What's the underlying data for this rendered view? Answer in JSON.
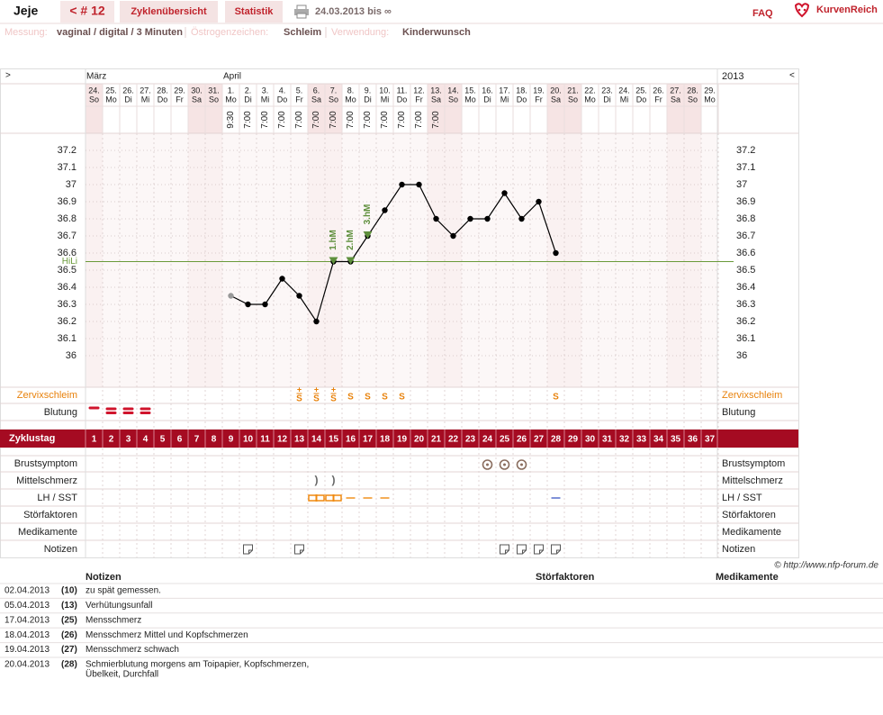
{
  "header": {
    "user": "Jeje",
    "cycle": "< # 12",
    "tabs": [
      "Zyklenübersicht",
      "Statistik"
    ],
    "range": "24.03.2013 bis ∞",
    "faq": "FAQ",
    "brand": "KurvenReich"
  },
  "info": [
    {
      "label": "Messung:",
      "value": "vaginal / digital / 3 Minuten"
    },
    {
      "label": "Östrogenzeichen:",
      "value": "Schleim"
    },
    {
      "label": "Verwendung:",
      "value": "Kinderwunsch"
    }
  ],
  "chart_data": {
    "type": "line",
    "nav_left": ">",
    "nav_right": "<",
    "year": "2013",
    "row_title": "Zyklustag",
    "categories": [
      1,
      2,
      3,
      4,
      5,
      6,
      7,
      8,
      9,
      10,
      11,
      12,
      13,
      14,
      15,
      16,
      17,
      18,
      19,
      20,
      21,
      22,
      23,
      24,
      25,
      26,
      27,
      28,
      29,
      30,
      31,
      32,
      33,
      34,
      35,
      36,
      37
    ],
    "days": [
      {
        "date": "24.",
        "weekday": "So",
        "month": "März"
      },
      {
        "date": "25.",
        "weekday": "Mo"
      },
      {
        "date": "26.",
        "weekday": "Di"
      },
      {
        "date": "27.",
        "weekday": "Mi"
      },
      {
        "date": "28.",
        "weekday": "Do"
      },
      {
        "date": "29.",
        "weekday": "Fr"
      },
      {
        "date": "30.",
        "weekday": "Sa"
      },
      {
        "date": "31.",
        "weekday": "So"
      },
      {
        "date": "1.",
        "weekday": "Mo",
        "month": "April"
      },
      {
        "date": "2.",
        "weekday": "Di"
      },
      {
        "date": "3.",
        "weekday": "Mi"
      },
      {
        "date": "4.",
        "weekday": "Do"
      },
      {
        "date": "5.",
        "weekday": "Fr"
      },
      {
        "date": "6.",
        "weekday": "Sa"
      },
      {
        "date": "7.",
        "weekday": "So"
      },
      {
        "date": "8.",
        "weekday": "Mo"
      },
      {
        "date": "9.",
        "weekday": "Di"
      },
      {
        "date": "10.",
        "weekday": "Mi"
      },
      {
        "date": "11.",
        "weekday": "Do"
      },
      {
        "date": "12.",
        "weekday": "Fr"
      },
      {
        "date": "13.",
        "weekday": "Sa"
      },
      {
        "date": "14.",
        "weekday": "So"
      },
      {
        "date": "15.",
        "weekday": "Mo"
      },
      {
        "date": "16.",
        "weekday": "Di"
      },
      {
        "date": "17.",
        "weekday": "Mi"
      },
      {
        "date": "18.",
        "weekday": "Do"
      },
      {
        "date": "19.",
        "weekday": "Fr"
      },
      {
        "date": "20.",
        "weekday": "Sa"
      },
      {
        "date": "21.",
        "weekday": "So"
      },
      {
        "date": "22.",
        "weekday": "Mo"
      },
      {
        "date": "23.",
        "weekday": "Di"
      },
      {
        "date": "24.",
        "weekday": "Mi"
      },
      {
        "date": "25.",
        "weekday": "Do"
      },
      {
        "date": "26.",
        "weekday": "Fr"
      },
      {
        "date": "27.",
        "weekday": "Sa"
      },
      {
        "date": "28.",
        "weekday": "So"
      },
      {
        "date": "29.",
        "weekday": "Mo"
      }
    ],
    "times": [
      null,
      null,
      null,
      null,
      null,
      null,
      null,
      null,
      "9:30",
      "7:00",
      "7:00",
      "7:00",
      "7:00",
      "7:00",
      "7:00",
      "7:00",
      "7:00",
      "7:00",
      "7:00",
      "7:00",
      "7:00",
      null,
      null,
      null,
      null,
      null,
      null,
      null,
      null,
      null,
      null,
      null,
      null,
      null,
      null,
      null,
      null
    ],
    "series": [
      {
        "color": "#000000",
        "muted_color": "#999999",
        "muted_days": [
          9
        ],
        "values": [
          null,
          null,
          null,
          null,
          null,
          null,
          null,
          null,
          36.35,
          36.3,
          36.3,
          36.45,
          36.35,
          36.2,
          36.55,
          36.55,
          36.7,
          36.85,
          37.0,
          37.0,
          36.8,
          36.7,
          36.8,
          36.8,
          36.95,
          36.8,
          36.9,
          36.6,
          null,
          null,
          null,
          null,
          null,
          null,
          null,
          null,
          null
        ]
      }
    ],
    "ylim": [
      35.85,
      37.3
    ],
    "yticks": [
      36,
      36.1,
      36.2,
      36.3,
      36.4,
      36.5,
      36.6,
      36.7,
      36.8,
      36.9,
      37,
      37.1,
      37.2
    ],
    "grid": true,
    "weekend_color": "#f6e4e4",
    "cover_line": {
      "label": "HiLi",
      "value": 36.55,
      "color": "#6a9a3a"
    },
    "peaks": [
      {
        "label": "1.hM",
        "day": 15
      },
      {
        "label": "2.hM",
        "day": 16
      },
      {
        "label": "3.hM",
        "day": 17
      }
    ],
    "peak_color": "#5e8f3c",
    "bar_color": "#a50b22"
  },
  "symptoms": {
    "zervix": {
      "label": "Zervixschleim",
      "color": "#e8820c",
      "entries": [
        {
          "day": 13,
          "symbol": "S",
          "sign": "+"
        },
        {
          "day": 14,
          "symbol": "S",
          "sign": "+"
        },
        {
          "day": 15,
          "symbol": "S",
          "sign": "+"
        },
        {
          "day": 16,
          "symbol": "S"
        },
        {
          "day": 17,
          "symbol": "S"
        },
        {
          "day": 18,
          "symbol": "S"
        },
        {
          "day": 19,
          "symbol": "S"
        },
        {
          "day": 28,
          "symbol": "S"
        }
      ]
    },
    "blutung": {
      "label": "Blutung",
      "color": "#d0142c",
      "entries": [
        {
          "day": 1,
          "level": 1
        },
        {
          "day": 2,
          "level": 2
        },
        {
          "day": 3,
          "level": 2
        },
        {
          "day": 4,
          "level": 2
        }
      ]
    },
    "brust": {
      "label": "Brustsymptom",
      "color": "#8a6d5e",
      "days": [
        24,
        25,
        26
      ]
    },
    "mittel": {
      "label": "Mittelschmerz",
      "symbol": ")",
      "days": [
        14,
        15
      ]
    },
    "lh": {
      "label": "LH / SST",
      "entries": [
        {
          "day": 14,
          "color": "#f08a10",
          "style": "box"
        },
        {
          "day": 15,
          "color": "#f08a10",
          "style": "box"
        },
        {
          "day": 16,
          "color": "#f08a10",
          "style": "dash"
        },
        {
          "day": 17,
          "color": "#f08a10",
          "style": "dash"
        },
        {
          "day": 18,
          "color": "#f08a10",
          "style": "dash"
        },
        {
          "day": 28,
          "color": "#4a64c8",
          "style": "dash"
        }
      ]
    },
    "stoer": {
      "label": "Störfaktoren"
    },
    "medik": {
      "label": "Medikamente"
    },
    "notiz": {
      "label": "Notizen",
      "days": [
        10,
        13,
        25,
        26,
        27,
        28
      ]
    }
  },
  "notes": {
    "copyright": "© http://www.nfp-forum.de",
    "headers": [
      "Notizen",
      "Störfaktoren",
      "Medikamente"
    ],
    "rows": [
      {
        "date": "02.04.2013",
        "day": "(10)",
        "lines": [
          "zu spät gemessen."
        ]
      },
      {
        "date": "05.04.2013",
        "day": "(13)",
        "lines": [
          "Verhütungsunfall"
        ]
      },
      {
        "date": "17.04.2013",
        "day": "(25)",
        "lines": [
          "Mensschmerz"
        ]
      },
      {
        "date": "18.04.2013",
        "day": "(26)",
        "lines": [
          "Mensschmerz Mittel und Kopfschmerzen"
        ]
      },
      {
        "date": "19.04.2013",
        "day": "(27)",
        "lines": [
          "Mensschmerz schwach"
        ]
      },
      {
        "date": "20.04.2013",
        "day": "(28)",
        "lines": [
          "Schmierblutung morgens am Toipapier, Kopfschmerzen,",
          "Übelkeit, Durchfall"
        ]
      }
    ]
  }
}
